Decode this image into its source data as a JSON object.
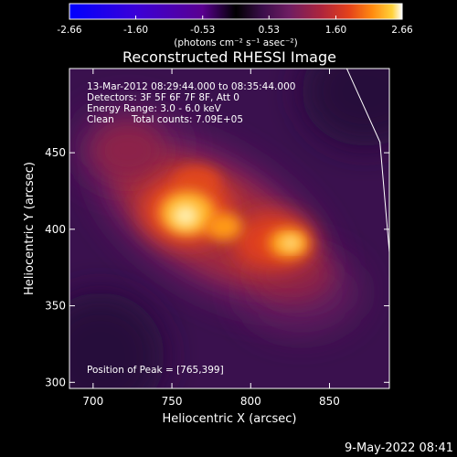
{
  "colorbar": {
    "tick_labels": [
      "-2.66",
      "-1.60",
      "-0.53",
      "0.53",
      "1.60",
      "2.66"
    ],
    "range": [
      -2.66,
      2.66
    ],
    "unit_label": "(photons cm⁻² s⁻¹ asec⁻²)",
    "colors": [
      "#0000ff",
      "#3b00d8",
      "#5a0090",
      "#000000",
      "#3a0d4a",
      "#6e1d62",
      "#b0253b",
      "#e4411a",
      "#ff8a10",
      "#ffd23a",
      "#ffffff"
    ]
  },
  "title": "Reconstructed RHESSI Image",
  "info": {
    "time_range": "13-Mar-2012 08:29:44.000 to 08:35:44.000",
    "detectors": "Detectors: 3F 5F 6F 7F 8F, Att 0",
    "energy_range": "Energy Range: 3.0 - 6.0 keV",
    "clean_label": "Clean",
    "total_counts": "Total counts: 7.09E+05",
    "peak_position": "Position of Peak = [765,399]"
  },
  "footer": {
    "timestamp": "9-May-2022 08:41"
  },
  "chart_data": {
    "type": "heatmap",
    "title": "Reconstructed RHESSI Image",
    "xlabel": "Heliocentric X (arcsec)",
    "ylabel": "Heliocentric Y (arcsec)",
    "xlim": [
      685,
      888
    ],
    "ylim": [
      296,
      505
    ],
    "x_ticks": [
      {
        "value": 700,
        "label": "700"
      },
      {
        "value": 750,
        "label": "750"
      },
      {
        "value": 800,
        "label": "800"
      },
      {
        "value": 850,
        "label": "850"
      }
    ],
    "y_ticks": [
      {
        "value": 300,
        "label": "300"
      },
      {
        "value": 350,
        "label": "350"
      },
      {
        "value": 400,
        "label": "400"
      },
      {
        "value": 450,
        "label": "450"
      }
    ],
    "peak_position": [
      765,
      399
    ],
    "limb_line": [
      [
        861,
        505
      ],
      [
        882,
        457
      ],
      [
        888,
        385
      ]
    ]
  }
}
